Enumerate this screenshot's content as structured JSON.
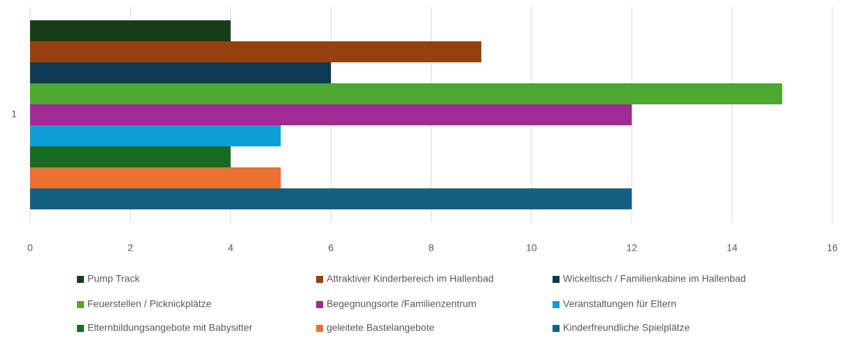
{
  "chart_data": {
    "type": "hbar",
    "categories": [
      "1"
    ],
    "series": [
      {
        "name": "Pump Track",
        "color": "#173d17",
        "values": [
          4
        ]
      },
      {
        "name": "Attraktiver Kinderbereich im Hallenbad",
        "color": "#97400f",
        "values": [
          9
        ]
      },
      {
        "name": "Wickeltisch / Familienkabine im Hallenbad",
        "color": "#0e3a52",
        "values": [
          6
        ]
      },
      {
        "name": "Feuerstellen / Picknickplätze",
        "color": "#4ea72e",
        "values": [
          15
        ]
      },
      {
        "name": "Begegnungsorte /Familienzentrum",
        "color": "#a02b93",
        "values": [
          12
        ]
      },
      {
        "name": "Veranstaltungen für Eltern",
        "color": "#0f9ed5",
        "values": [
          5
        ]
      },
      {
        "name": "Elternbildungsangebote mit Babysitter",
        "color": "#196b24",
        "values": [
          4
        ]
      },
      {
        "name": "geleitete Bastelangebote",
        "color": "#e97132",
        "values": [
          5
        ]
      },
      {
        "name": "Kinderfreundliche Spielplätze",
        "color": "#156082",
        "values": [
          12
        ]
      }
    ],
    "xlim": [
      0,
      16
    ],
    "xticks": [
      0,
      2,
      4,
      6,
      8,
      10,
      12,
      14,
      16
    ],
    "grid": true,
    "legend": "bottom"
  }
}
